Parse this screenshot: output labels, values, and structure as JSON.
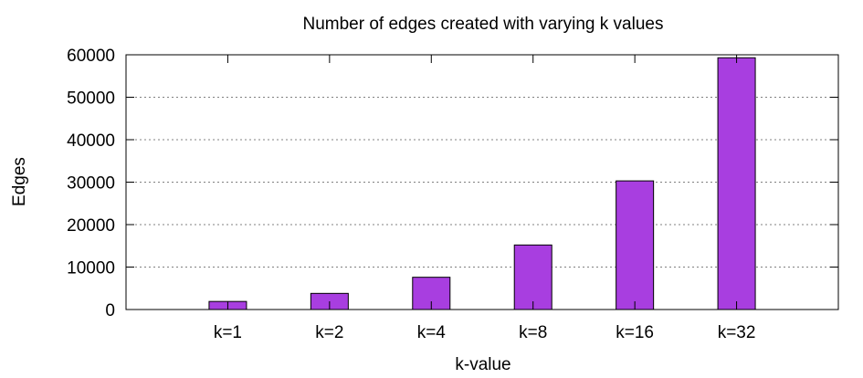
{
  "chart_data": {
    "type": "bar",
    "title": "Number of edges created with varying k values",
    "xlabel": "k-value",
    "ylabel": "Edges",
    "categories": [
      "k=1",
      "k=2",
      "k=4",
      "k=8",
      "k=16",
      "k=32"
    ],
    "values": [
      1900,
      3800,
      7600,
      15200,
      30300,
      59300
    ],
    "ylim": [
      0,
      60000
    ],
    "yticks": [
      0,
      10000,
      20000,
      30000,
      40000,
      50000,
      60000
    ],
    "grid": "horizontal-dotted",
    "legend": "none",
    "colors": {
      "bar_fill": "#a83ee0",
      "bar_stroke": "#000000",
      "grid": "#808080"
    }
  }
}
